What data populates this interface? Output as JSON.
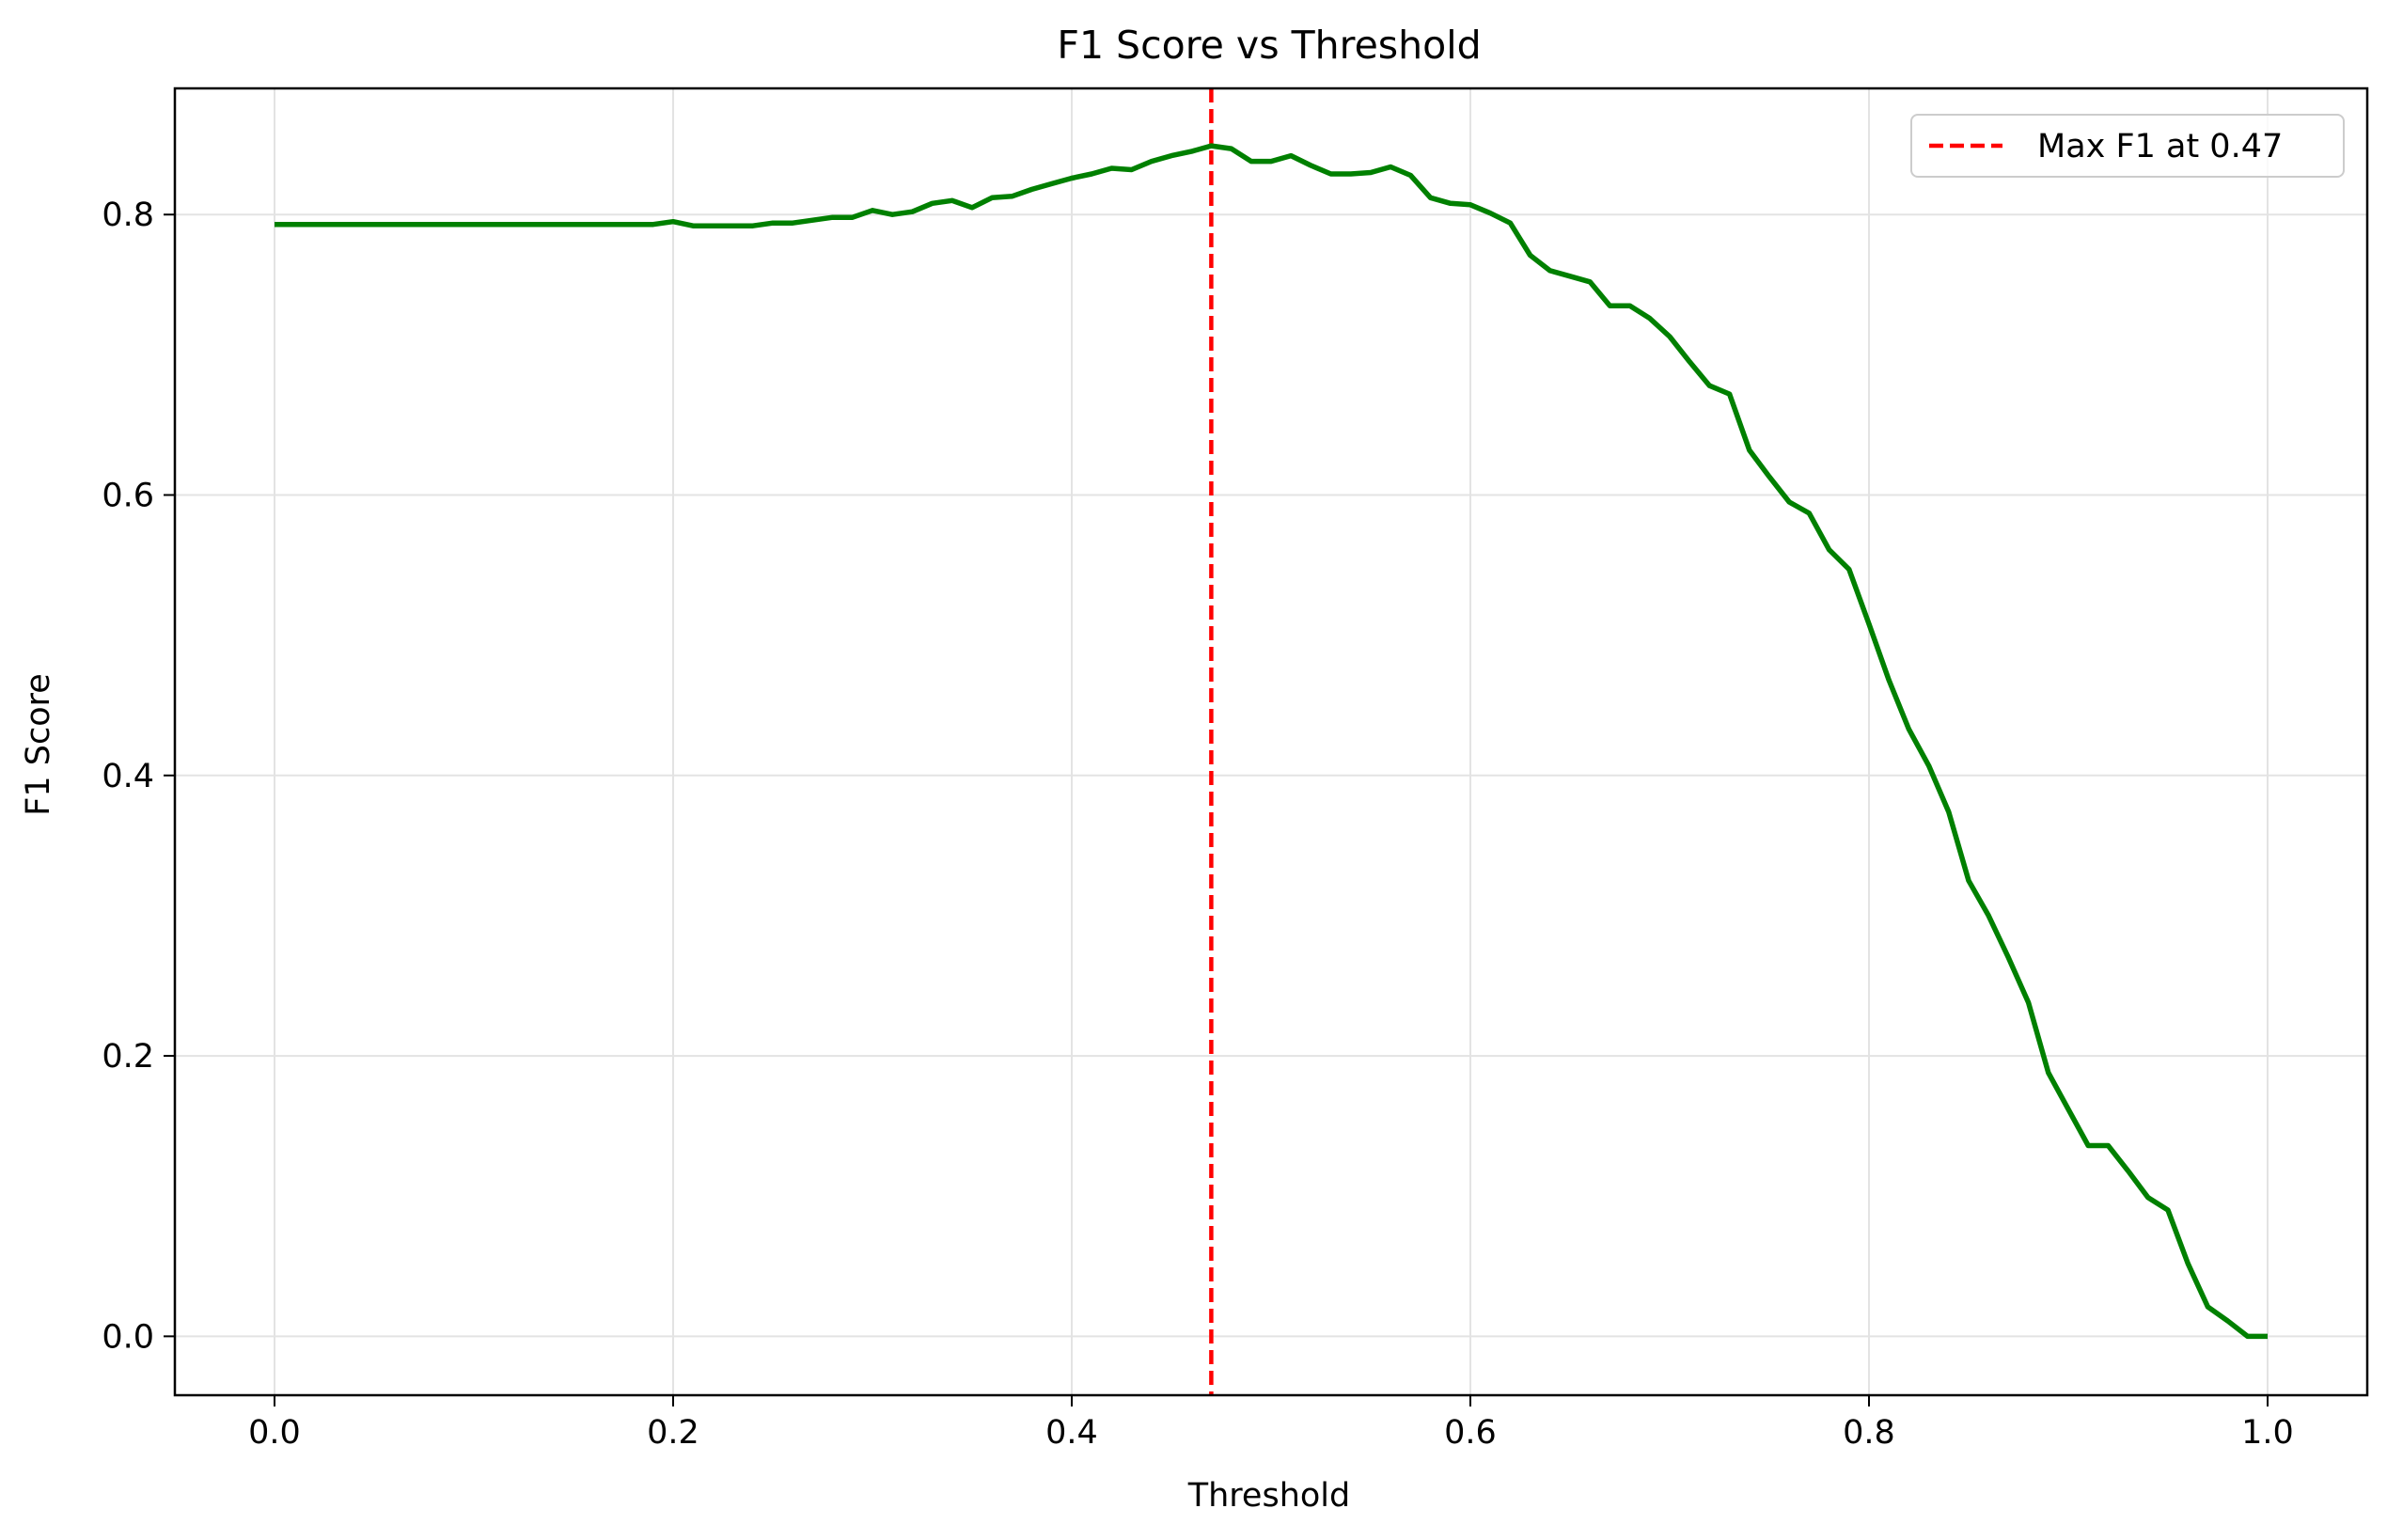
{
  "chart_data": {
    "type": "line",
    "title": "F1 Score vs Threshold",
    "xlabel": "Threshold",
    "ylabel": "F1 Score",
    "xlim": [
      -0.05,
      1.05
    ],
    "ylim": [
      -0.042,
      0.89
    ],
    "xticks": [
      0.0,
      0.2,
      0.4,
      0.6,
      0.8,
      1.0
    ],
    "xtick_labels": [
      "0.0",
      "0.2",
      "0.4",
      "0.6",
      "0.8",
      "1.0"
    ],
    "yticks": [
      0.0,
      0.2,
      0.4,
      0.6,
      0.8
    ],
    "ytick_labels": [
      "0.0",
      "0.2",
      "0.4",
      "0.6",
      "0.8"
    ],
    "grid": true,
    "legend_position": "top-right",
    "series": [
      {
        "color": "#008000",
        "x": [
          0.0,
          0.01,
          0.02,
          0.03,
          0.04,
          0.05,
          0.06,
          0.07,
          0.08,
          0.09,
          0.1,
          0.11,
          0.12,
          0.13,
          0.14,
          0.15,
          0.16,
          0.17,
          0.18,
          0.19,
          0.2,
          0.21,
          0.22,
          0.23,
          0.24,
          0.25,
          0.26,
          0.27,
          0.28,
          0.29,
          0.3,
          0.31,
          0.32,
          0.33,
          0.34,
          0.35,
          0.36,
          0.37,
          0.38,
          0.39,
          0.4,
          0.41,
          0.42,
          0.43,
          0.44,
          0.45,
          0.46,
          0.47,
          0.48,
          0.49,
          0.5,
          0.51,
          0.52,
          0.53,
          0.54,
          0.55,
          0.56,
          0.57,
          0.58,
          0.59,
          0.6,
          0.61,
          0.62,
          0.63,
          0.64,
          0.65,
          0.66,
          0.67,
          0.68,
          0.69,
          0.7,
          0.71,
          0.72,
          0.73,
          0.74,
          0.75,
          0.76,
          0.77,
          0.78,
          0.79,
          0.8,
          0.81,
          0.82,
          0.83,
          0.84,
          0.85,
          0.86,
          0.87,
          0.88,
          0.89,
          0.9,
          0.91,
          0.92,
          0.93,
          0.94,
          0.95,
          0.96,
          0.97,
          0.98,
          0.99,
          1.0
        ],
        "values": [
          0.793,
          0.793,
          0.793,
          0.793,
          0.793,
          0.793,
          0.793,
          0.793,
          0.793,
          0.793,
          0.793,
          0.793,
          0.793,
          0.793,
          0.793,
          0.793,
          0.793,
          0.793,
          0.793,
          0.793,
          0.795,
          0.792,
          0.792,
          0.792,
          0.792,
          0.794,
          0.794,
          0.796,
          0.798,
          0.798,
          0.803,
          0.8,
          0.802,
          0.808,
          0.81,
          0.805,
          0.812,
          0.813,
          0.818,
          0.822,
          0.826,
          0.829,
          0.833,
          0.832,
          0.838,
          0.842,
          0.845,
          0.849,
          0.847,
          0.838,
          0.838,
          0.842,
          0.835,
          0.829,
          0.829,
          0.83,
          0.834,
          0.828,
          0.812,
          0.808,
          0.807,
          0.801,
          0.794,
          0.771,
          0.76,
          0.756,
          0.752,
          0.735,
          0.735,
          0.726,
          0.713,
          0.695,
          0.678,
          0.672,
          0.632,
          0.613,
          0.595,
          0.587,
          0.561,
          0.547,
          0.508,
          0.468,
          0.433,
          0.407,
          0.374,
          0.325,
          0.3,
          0.27,
          0.238,
          0.188,
          0.162,
          0.136,
          0.136,
          0.118,
          0.099,
          0.09,
          0.052,
          0.021,
          0.011,
          0.0,
          0.0
        ]
      }
    ],
    "reference_lines": [
      {
        "orientation": "vertical",
        "x": 0.47,
        "style": "dashed",
        "color": "#ff0000",
        "label": "Max F1 at 0.47"
      }
    ],
    "legend": [
      {
        "label": "Max F1 at 0.47",
        "color": "#ff0000",
        "style": "dashed"
      }
    ]
  }
}
